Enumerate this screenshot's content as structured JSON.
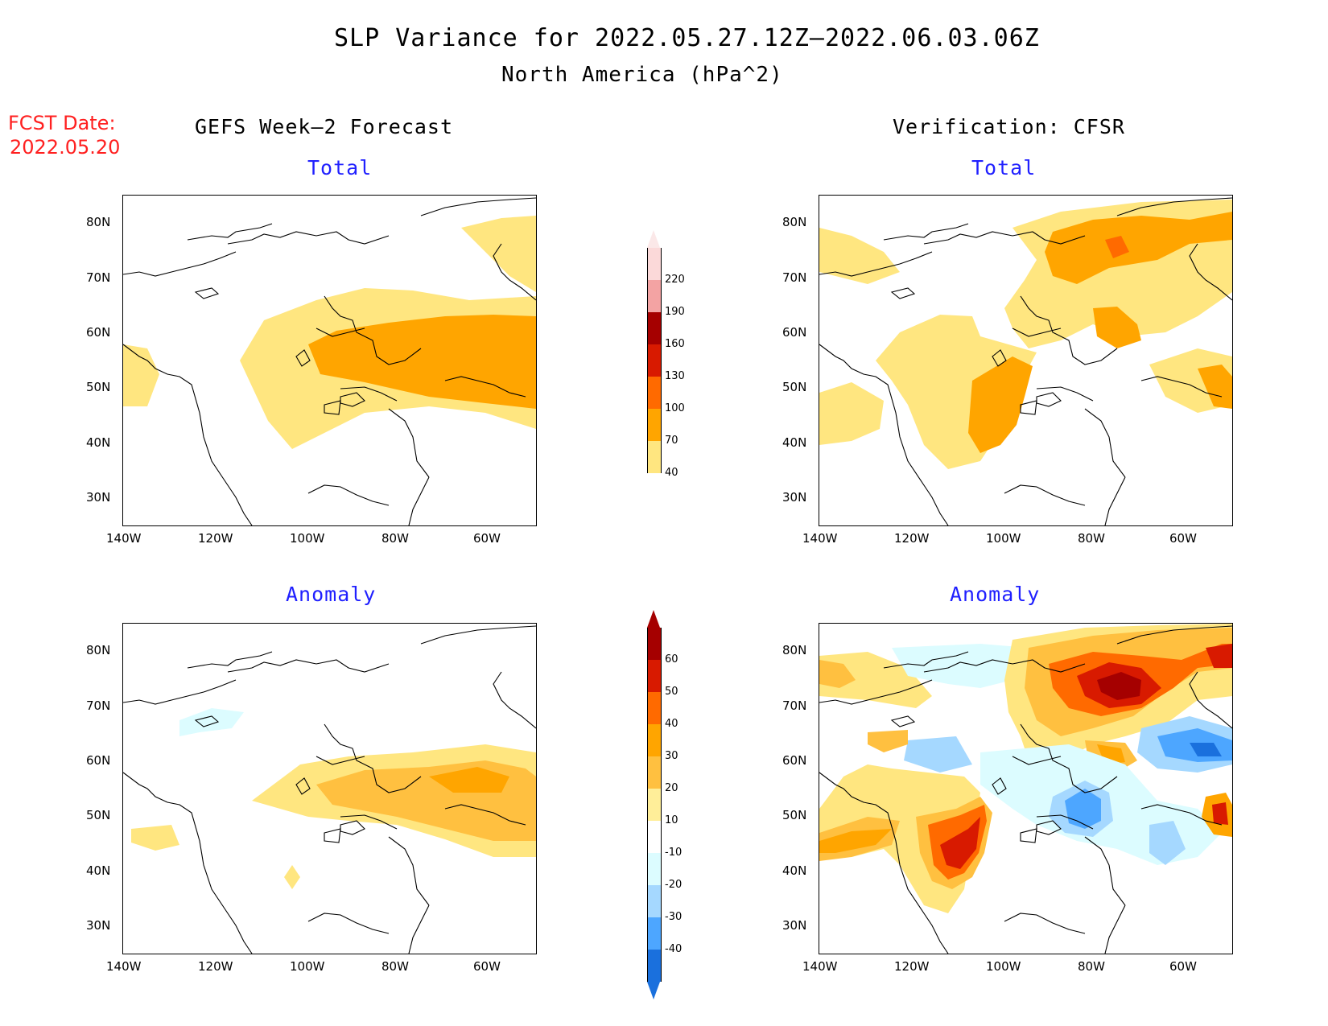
{
  "header": {
    "title": "SLP Variance for 2022.05.27.12Z–2022.06.03.06Z",
    "subtitle": "North America (hPa^2)",
    "fcst_line1": "FCST Date:",
    "fcst_line2": "2022.05.20",
    "left_column": "GEFS Week–2 Forecast",
    "right_column": "Verification: CFSR"
  },
  "panels": {
    "tl": {
      "title": "Total"
    },
    "tr": {
      "title": "Total"
    },
    "bl": {
      "title": "Anomaly"
    },
    "br": {
      "title": "Anomaly"
    }
  },
  "axes": {
    "lat_labels": [
      "80N",
      "70N",
      "60N",
      "50N",
      "40N",
      "30N"
    ],
    "lon_labels": [
      "140W",
      "120W",
      "100W",
      "80W",
      "60W"
    ],
    "lon_range": [
      -140,
      -50
    ],
    "lat_range": [
      25,
      85
    ]
  },
  "colorbar_total": {
    "labels": [
      "220",
      "190",
      "160",
      "130",
      "100",
      "70",
      "40"
    ],
    "colors": [
      "#fbd9d9",
      "#f3a3a3",
      "#a50000",
      "#d81a00",
      "#ff6a00",
      "#ffa500",
      "#ffe680"
    ]
  },
  "colorbar_anomaly": {
    "labels": [
      "60",
      "50",
      "40",
      "30",
      "20",
      "10",
      "-10",
      "-20",
      "-30",
      "-40"
    ],
    "colors": [
      "#a50000",
      "#d81a00",
      "#ff6a00",
      "#ffa500",
      "#ffc040",
      "#ffee99",
      "#ffffff",
      "#dcfcff",
      "#a5d8ff",
      "#4da6ff",
      "#1a70dd"
    ]
  },
  "palette": {
    "light_yellow": "#ffe680",
    "orange": "#ffa500",
    "deep_orange": "#ff6a00",
    "red": "#d81a00",
    "dark_red": "#a50000",
    "light_blue": "#dcfcff",
    "blue": "#4da6ff",
    "dark_blue": "#1a70dd"
  }
}
